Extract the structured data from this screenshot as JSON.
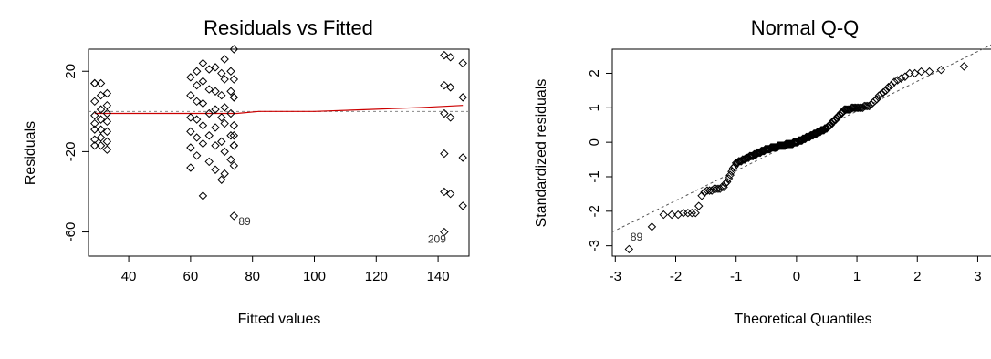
{
  "chart_data": [
    {
      "type": "scatter",
      "title": "Residuals vs Fitted",
      "xlabel": "Fitted values",
      "ylabel": "Residuals",
      "xlim": [
        27,
        150
      ],
      "ylim": [
        -72,
        31
      ],
      "xticks": [
        40,
        60,
        80,
        100,
        120,
        140
      ],
      "yticks": [
        20,
        -20,
        -60
      ],
      "points": [
        [
          29,
          14
        ],
        [
          29,
          14
        ],
        [
          29,
          5
        ],
        [
          29,
          -2
        ],
        [
          29,
          -6
        ],
        [
          29,
          -9
        ],
        [
          29,
          -14
        ],
        [
          29,
          -17
        ],
        [
          31,
          14
        ],
        [
          31,
          8
        ],
        [
          31,
          1
        ],
        [
          31,
          -4
        ],
        [
          31,
          -9
        ],
        [
          31,
          -13
        ],
        [
          31,
          -17
        ],
        [
          33,
          9
        ],
        [
          33,
          3
        ],
        [
          33,
          -1
        ],
        [
          33,
          -5
        ],
        [
          33,
          -10
        ],
        [
          33,
          -15
        ],
        [
          33,
          -19
        ],
        [
          60,
          17
        ],
        [
          60,
          8
        ],
        [
          60,
          -3
        ],
        [
          60,
          -10
        ],
        [
          60,
          -18
        ],
        [
          60,
          -28
        ],
        [
          62,
          20
        ],
        [
          62,
          13
        ],
        [
          62,
          5
        ],
        [
          62,
          -4
        ],
        [
          62,
          -13
        ],
        [
          62,
          -22
        ],
        [
          64,
          24
        ],
        [
          64,
          15
        ],
        [
          64,
          4
        ],
        [
          64,
          -7
        ],
        [
          64,
          -16
        ],
        [
          64,
          -42
        ],
        [
          66,
          21
        ],
        [
          66,
          11
        ],
        [
          66,
          -1
        ],
        [
          66,
          -12
        ],
        [
          66,
          -25
        ],
        [
          68,
          22
        ],
        [
          68,
          10
        ],
        [
          68,
          1
        ],
        [
          68,
          -8
        ],
        [
          68,
          -17
        ],
        [
          68,
          -29
        ],
        [
          70,
          19
        ],
        [
          70,
          8
        ],
        [
          70,
          -3
        ],
        [
          70,
          -15
        ],
        [
          70,
          -34
        ],
        [
          71,
          26
        ],
        [
          71,
          16
        ],
        [
          71,
          2
        ],
        [
          71,
          -6
        ],
        [
          71,
          -20
        ],
        [
          71,
          -31
        ],
        [
          73,
          20
        ],
        [
          73,
          10
        ],
        [
          73,
          -1
        ],
        [
          73,
          -12
        ],
        [
          73,
          -24
        ],
        [
          74,
          31
        ],
        [
          74,
          16
        ],
        [
          74,
          7
        ],
        [
          74,
          7
        ],
        [
          74,
          -7
        ],
        [
          74,
          -12
        ],
        [
          74,
          -17
        ],
        [
          74,
          -17
        ],
        [
          74,
          -27
        ],
        [
          74,
          -52
        ],
        [
          142,
          28
        ],
        [
          142,
          13
        ],
        [
          142,
          -1
        ],
        [
          142,
          -21
        ],
        [
          142,
          -40
        ],
        [
          142,
          -60
        ],
        [
          144,
          27
        ],
        [
          144,
          12
        ],
        [
          144,
          -3
        ],
        [
          144,
          -41
        ],
        [
          148,
          24
        ],
        [
          148,
          7
        ],
        [
          148,
          -23
        ],
        [
          148,
          -47
        ]
      ],
      "smoother": [
        [
          29,
          -1
        ],
        [
          75,
          -1
        ],
        [
          82,
          0
        ],
        [
          100,
          0
        ],
        [
          118,
          1
        ],
        [
          135,
          2
        ],
        [
          148,
          3
        ]
      ],
      "reference_y": 0,
      "labeled_points": [
        {
          "label": "89",
          "x": 74,
          "y": -52
        },
        {
          "label": "209",
          "x": 142,
          "y": -60
        }
      ],
      "colors": {
        "points": "#000000",
        "smoother": "#cc0000",
        "reference": "#888888"
      }
    },
    {
      "type": "scatter",
      "title": "Normal Q-Q",
      "xlabel": "Theoretical Quantiles",
      "ylabel": "Standardized residuals",
      "xlim": [
        -3.05,
        3.25
      ],
      "ylim": [
        -3.3,
        2.7
      ],
      "xticks": [
        -3,
        -2,
        -1,
        0,
        1,
        2,
        3
      ],
      "yticks": [
        2,
        1,
        0,
        -1,
        -2,
        -3
      ],
      "reference_line": [
        [
          -3.05,
          -2.6
        ],
        [
          3.25,
          2.85
        ]
      ],
      "labeled_points": [
        {
          "label": "89",
          "x": -2.75,
          "y": -2.85
        }
      ],
      "colors": {
        "points": "#000000",
        "reference": "#555555"
      }
    }
  ]
}
